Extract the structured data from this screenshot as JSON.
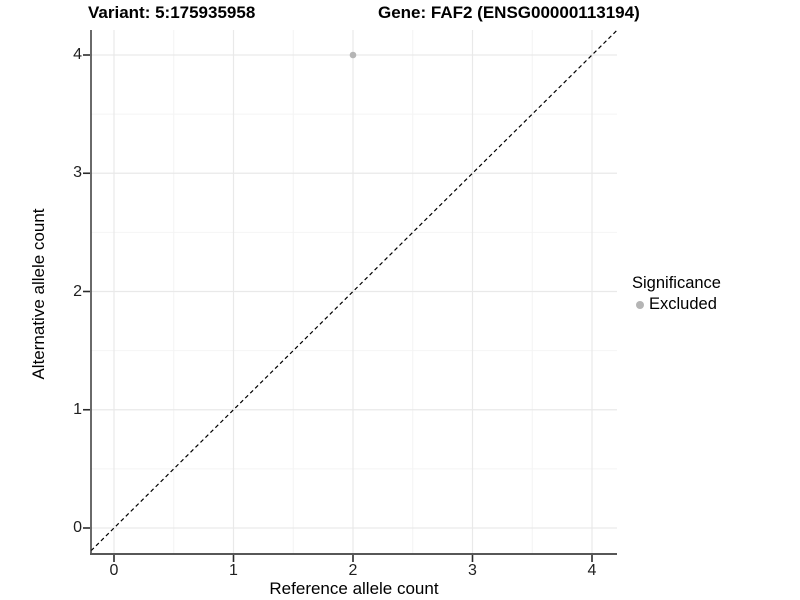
{
  "chart_data": {
    "type": "scatter",
    "title_left": "Variant: 5:175935958",
    "title_right": "Gene: FAF2 (ENSG00000113194)",
    "xlabel": "Reference allele count",
    "ylabel": "Alternative allele count",
    "xlim": [
      -0.2,
      4.2
    ],
    "ylim": [
      -0.2,
      4.2
    ],
    "x_ticks": [
      "0",
      "1",
      "2",
      "3",
      "4"
    ],
    "y_ticks": [
      "0",
      "1",
      "2",
      "3",
      "4"
    ],
    "grid": {
      "major": true,
      "minor": true
    },
    "series": [
      {
        "name": "Excluded",
        "color": "#b5b5b5",
        "points": [
          {
            "x": 2,
            "y": 4
          }
        ]
      }
    ],
    "reference_line": {
      "kind": "y=x",
      "style": "dashed",
      "color": "#000000"
    },
    "legend": {
      "title": "Significance",
      "position": "right",
      "items": [
        {
          "label": "Excluded",
          "color": "#b5b5b5"
        }
      ]
    },
    "colors": {
      "grid_major": "#e9e9e9",
      "grid_minor": "#f4f4f4",
      "axis_line_left": "#2b2b2b",
      "axis_line_bottom": "#575757",
      "tick_mark": "#2b2b2b",
      "tick_label": "#1f1f1f",
      "background": "#ffffff"
    }
  }
}
